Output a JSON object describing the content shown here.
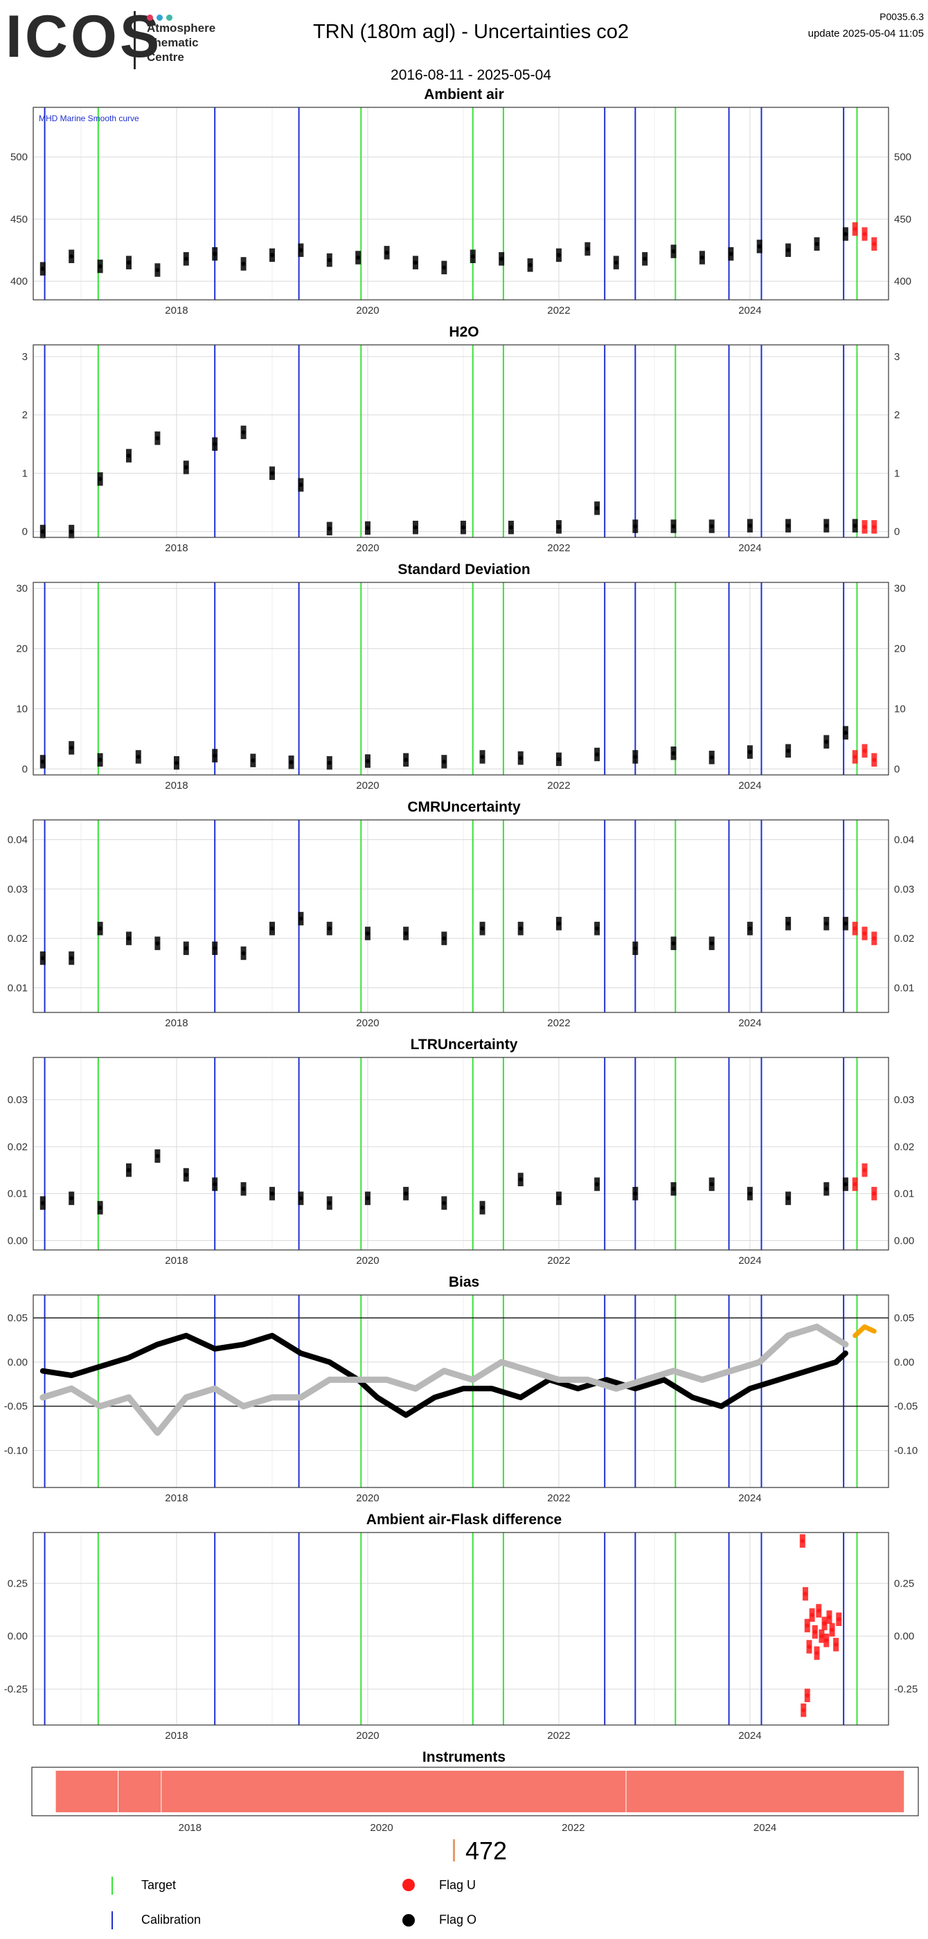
{
  "header": {
    "logo_text": "ICOS",
    "logo_sub_lines": [
      "Atmosphere",
      "Thematic",
      "Centre"
    ],
    "logo_dot_colors": [
      "#e8365d",
      "#2fa4d7",
      "#3fb8a5"
    ],
    "title": "TRN  (180m agl) - Uncertainties co2",
    "daterange": "2016-08-11 - 2025-05-04",
    "version": "P0035.6.3",
    "update": "update  2025-05-04 11:05"
  },
  "colors": {
    "calibration": "#1f2fd1",
    "target": "#39e239",
    "flag_o": "#000000",
    "flag_u": "#ff1a1a",
    "bias_smooth": "#b8b8b8",
    "bias_recent": "#f5a300",
    "instrument_bar": "#f7776c",
    "grid_major": "#d9d9d9",
    "grid_minor": "#eeeeee",
    "zero_line": "#9a9a9a"
  },
  "chart_data": [
    {
      "type": "scatter",
      "title": "Ambient air",
      "annotation": "MHD Marine Smooth curve",
      "x_ticks": [
        "2018",
        "2020",
        "2022",
        "2024"
      ],
      "y_ticks": [
        "400",
        "450",
        "500"
      ],
      "ylim": [
        385,
        540
      ],
      "series": [
        {
          "flag": "O",
          "x": [
            2016.6,
            2016.9,
            2017.2,
            2017.5,
            2017.8,
            2018.1,
            2018.4,
            2018.7,
            2019.0,
            2019.3,
            2019.6,
            2019.9,
            2020.2,
            2020.5,
            2020.8,
            2021.1,
            2021.4,
            2021.7,
            2022.0,
            2022.3,
            2022.6,
            2022.9,
            2023.2,
            2023.5,
            2023.8,
            2024.1,
            2024.4,
            2024.7,
            2025.0
          ],
          "y": [
            410,
            420,
            412,
            415,
            409,
            418,
            422,
            414,
            421,
            425,
            417,
            419,
            423,
            415,
            411,
            420,
            418,
            413,
            421,
            426,
            415,
            418,
            424,
            419,
            422,
            428,
            425,
            430,
            438
          ]
        },
        {
          "flag": "U",
          "x": [
            2025.1,
            2025.2,
            2025.3
          ],
          "y": [
            442,
            438,
            430
          ]
        }
      ]
    },
    {
      "type": "scatter",
      "title": "H2O",
      "x_ticks": [
        "2018",
        "2020",
        "2022",
        "2024"
      ],
      "y_ticks": [
        "0",
        "1",
        "2",
        "3"
      ],
      "ylim": [
        -0.1,
        3.2
      ],
      "series": [
        {
          "flag": "O",
          "x": [
            2016.6,
            2016.9,
            2017.2,
            2017.5,
            2017.8,
            2018.1,
            2018.4,
            2018.7,
            2019.0,
            2019.3,
            2019.6,
            2020.0,
            2020.5,
            2021.0,
            2021.5,
            2022.0,
            2022.4,
            2022.8,
            2023.2,
            2023.6,
            2024.0,
            2024.4,
            2024.8,
            2025.1
          ],
          "y": [
            0.0,
            0.0,
            0.9,
            1.3,
            1.6,
            1.1,
            1.5,
            1.7,
            1.0,
            0.8,
            0.05,
            0.06,
            0.07,
            0.07,
            0.07,
            0.08,
            0.4,
            0.09,
            0.09,
            0.09,
            0.1,
            0.1,
            0.1,
            0.1
          ]
        },
        {
          "flag": "U",
          "x": [
            2025.2,
            2025.3
          ],
          "y": [
            0.08,
            0.08
          ]
        }
      ]
    },
    {
      "type": "scatter",
      "title": "Standard Deviation",
      "x_ticks": [
        "2018",
        "2020",
        "2022",
        "2024"
      ],
      "y_ticks": [
        "0",
        "10",
        "20",
        "30"
      ],
      "ylim": [
        -1,
        31
      ],
      "series": [
        {
          "flag": "O",
          "x": [
            2016.6,
            2016.9,
            2017.2,
            2017.6,
            2018.0,
            2018.4,
            2018.8,
            2019.2,
            2019.6,
            2020.0,
            2020.4,
            2020.8,
            2021.2,
            2021.6,
            2022.0,
            2022.4,
            2022.8,
            2023.2,
            2023.6,
            2024.0,
            2024.4,
            2024.8,
            2025.0
          ],
          "y": [
            1.2,
            3.5,
            1.5,
            2.0,
            1.0,
            2.2,
            1.4,
            1.1,
            1.0,
            1.3,
            1.5,
            1.2,
            2.0,
            1.8,
            1.6,
            2.4,
            2.0,
            2.6,
            1.9,
            2.8,
            3.0,
            4.5,
            6.0
          ]
        },
        {
          "flag": "U",
          "x": [
            2025.1,
            2025.2,
            2025.3
          ],
          "y": [
            2.0,
            3.0,
            1.5
          ]
        }
      ]
    },
    {
      "type": "scatter",
      "title": "CMRUncertainty",
      "x_ticks": [
        "2018",
        "2020",
        "2022",
        "2024"
      ],
      "y_ticks": [
        "0.01",
        "0.02",
        "0.03",
        "0.04"
      ],
      "ylim": [
        0.005,
        0.044
      ],
      "series": [
        {
          "flag": "O",
          "x": [
            2016.6,
            2016.9,
            2017.2,
            2017.5,
            2017.8,
            2018.1,
            2018.4,
            2018.7,
            2019.0,
            2019.3,
            2019.6,
            2020.0,
            2020.4,
            2020.8,
            2021.2,
            2021.6,
            2022.0,
            2022.4,
            2022.8,
            2023.2,
            2023.6,
            2024.0,
            2024.4,
            2024.8,
            2025.0
          ],
          "y": [
            0.016,
            0.016,
            0.022,
            0.02,
            0.019,
            0.018,
            0.018,
            0.017,
            0.022,
            0.024,
            0.022,
            0.021,
            0.021,
            0.02,
            0.022,
            0.022,
            0.023,
            0.022,
            0.018,
            0.019,
            0.019,
            0.022,
            0.023,
            0.023,
            0.023
          ]
        },
        {
          "flag": "U",
          "x": [
            2025.1,
            2025.2,
            2025.3
          ],
          "y": [
            0.022,
            0.021,
            0.02
          ]
        }
      ]
    },
    {
      "type": "scatter",
      "title": "LTRUncertainty",
      "x_ticks": [
        "2018",
        "2020",
        "2022",
        "2024"
      ],
      "y_ticks": [
        "0.00",
        "0.01",
        "0.02",
        "0.03"
      ],
      "ylim": [
        -0.002,
        0.039
      ],
      "series": [
        {
          "flag": "O",
          "x": [
            2016.6,
            2016.9,
            2017.2,
            2017.5,
            2017.8,
            2018.1,
            2018.4,
            2018.7,
            2019.0,
            2019.3,
            2019.6,
            2020.0,
            2020.4,
            2020.8,
            2021.2,
            2021.6,
            2022.0,
            2022.4,
            2022.8,
            2023.2,
            2023.6,
            2024.0,
            2024.4,
            2024.8,
            2025.0
          ],
          "y": [
            0.008,
            0.009,
            0.007,
            0.015,
            0.018,
            0.014,
            0.012,
            0.011,
            0.01,
            0.009,
            0.008,
            0.009,
            0.01,
            0.008,
            0.007,
            0.013,
            0.009,
            0.012,
            0.01,
            0.011,
            0.012,
            0.01,
            0.009,
            0.011,
            0.012
          ]
        },
        {
          "flag": "U",
          "x": [
            2025.1,
            2025.2,
            2025.3
          ],
          "y": [
            0.012,
            0.015,
            0.01
          ]
        }
      ]
    },
    {
      "type": "line",
      "title": "Bias",
      "x_ticks": [
        "2018",
        "2020",
        "2022",
        "2024"
      ],
      "y_ticks": [
        "-0.10",
        "-0.05",
        "0.00",
        "0.05"
      ],
      "ylim": [
        -0.142,
        0.076
      ],
      "hlines": [
        0.05,
        -0.05
      ],
      "series": [
        {
          "name": "",
          "role": "bias",
          "x": [
            2016.6,
            2016.9,
            2017.2,
            2017.5,
            2017.8,
            2018.1,
            2018.4,
            2018.7,
            2019.0,
            2019.3,
            2019.6,
            2019.9,
            2020.1,
            2020.4,
            2020.7,
            2021.0,
            2021.3,
            2021.6,
            2021.9,
            2022.2,
            2022.5,
            2022.8,
            2023.1,
            2023.4,
            2023.7,
            2024.0,
            2024.3,
            2024.6,
            2024.9,
            2025.0
          ],
          "y": [
            -0.01,
            -0.015,
            -0.005,
            0.005,
            0.02,
            0.03,
            0.015,
            0.02,
            0.03,
            0.01,
            0.0,
            -0.02,
            -0.04,
            -0.06,
            -0.04,
            -0.03,
            -0.03,
            -0.04,
            -0.02,
            -0.03,
            -0.02,
            -0.03,
            -0.02,
            -0.04,
            -0.05,
            -0.03,
            -0.02,
            -0.01,
            0.0,
            0.01
          ]
        },
        {
          "name": "",
          "role": "smooth",
          "x": [
            2016.6,
            2016.9,
            2017.2,
            2017.5,
            2017.8,
            2018.1,
            2018.4,
            2018.7,
            2019.0,
            2019.3,
            2019.6,
            2019.9,
            2020.2,
            2020.5,
            2020.8,
            2021.1,
            2021.4,
            2021.7,
            2022.0,
            2022.3,
            2022.6,
            2022.9,
            2023.2,
            2023.5,
            2023.8,
            2024.1,
            2024.4,
            2024.7,
            2025.0
          ],
          "y": [
            -0.04,
            -0.03,
            -0.05,
            -0.04,
            -0.08,
            -0.04,
            -0.03,
            -0.05,
            -0.04,
            -0.04,
            -0.02,
            -0.02,
            -0.02,
            -0.03,
            -0.01,
            -0.02,
            0.0,
            -0.01,
            -0.02,
            -0.02,
            -0.03,
            -0.02,
            -0.01,
            -0.02,
            -0.01,
            0.0,
            0.03,
            0.04,
            0.02
          ]
        },
        {
          "name": "",
          "role": "recent",
          "x": [
            2025.1,
            2025.2,
            2025.3
          ],
          "y": [
            0.03,
            0.04,
            0.035
          ]
        }
      ]
    },
    {
      "type": "scatter",
      "title": "Ambient air-Flask difference",
      "x_ticks": [
        "2018",
        "2020",
        "2022",
        "2024"
      ],
      "y_ticks": [
        "-0.25",
        "0.00",
        "0.25"
      ],
      "ylim": [
        -0.42,
        0.49
      ],
      "series": [
        {
          "flag": "U",
          "x": [
            2024.55,
            2024.58,
            2024.6,
            2024.62,
            2024.65,
            2024.68,
            2024.7,
            2024.72,
            2024.75,
            2024.78,
            2024.8,
            2024.83,
            2024.86,
            2024.9,
            2024.93,
            2024.56,
            2024.6
          ],
          "y": [
            0.45,
            0.2,
            0.05,
            -0.05,
            0.1,
            0.02,
            -0.08,
            0.12,
            0.0,
            0.06,
            -0.02,
            0.09,
            0.03,
            -0.04,
            0.08,
            -0.35,
            -0.28
          ]
        }
      ]
    },
    {
      "type": "bar",
      "title": "Instruments",
      "x_ticks": [
        "2018",
        "2020",
        "2022",
        "2024"
      ],
      "categories": [
        "472"
      ],
      "values": [
        1
      ]
    }
  ],
  "count_label": "472",
  "legend": [
    {
      "label": "Target",
      "symbol": "line",
      "color": "#39e239"
    },
    {
      "label": "Flag U",
      "symbol": "dot",
      "color": "#ff1a1a"
    },
    {
      "label": "Calibration",
      "symbol": "line",
      "color": "#1f2fd1"
    },
    {
      "label": "Flag O",
      "symbol": "dot",
      "color": "#000000"
    }
  ],
  "events": {
    "calibration": [
      2016.62,
      2018.4,
      2019.28,
      2022.48,
      2022.8,
      2023.78,
      2024.12,
      2024.98
    ],
    "target": [
      2017.18,
      2019.93,
      2021.1,
      2021.42,
      2023.22,
      2025.12
    ]
  }
}
